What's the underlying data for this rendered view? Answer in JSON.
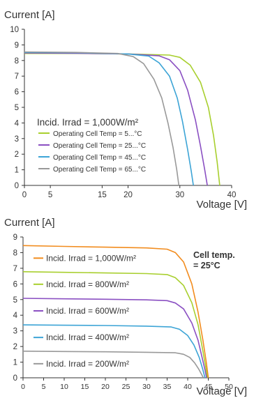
{
  "chart_data": [
    {
      "type": "line",
      "ylabel": "Current [A]",
      "xlabel": "Voltage [V]",
      "xlim": [
        0,
        40
      ],
      "ylim": [
        0,
        10
      ],
      "x_ticks": [
        0,
        5,
        15,
        20,
        30,
        40
      ],
      "y_ticks": [
        0,
        1,
        2,
        3,
        4,
        5,
        6,
        7,
        8,
        9,
        10
      ],
      "grid": false,
      "legend_title": "Incid. Irrad = 1,000W/m²",
      "legend_position": "lower-left",
      "series": [
        {
          "name": "Operating Cell Temp = 5...°C",
          "color": "#a8cf2e",
          "points": [
            [
              0,
              8.45
            ],
            [
              10,
              8.45
            ],
            [
              20,
              8.42
            ],
            [
              28,
              8.35
            ],
            [
              30,
              8.2
            ],
            [
              32,
              7.7
            ],
            [
              34,
              6.6
            ],
            [
              35.5,
              5.0
            ],
            [
              36.5,
              3.2
            ],
            [
              37.2,
              1.5
            ],
            [
              37.7,
              0
            ]
          ]
        },
        {
          "name": "Operating Cell Temp = 25...°C",
          "color": "#8a4fc2",
          "points": [
            [
              0,
              8.48
            ],
            [
              10,
              8.46
            ],
            [
              20,
              8.42
            ],
            [
              26,
              8.3
            ],
            [
              28,
              8.05
            ],
            [
              30,
              7.35
            ],
            [
              31.5,
              6.1
            ],
            [
              33,
              4.2
            ],
            [
              34,
              2.5
            ],
            [
              34.8,
              1.0
            ],
            [
              35.3,
              0
            ]
          ]
        },
        {
          "name": "Operating Cell Temp = 45...°C",
          "color": "#3ca4d6",
          "points": [
            [
              0,
              8.52
            ],
            [
              10,
              8.5
            ],
            [
              20,
              8.42
            ],
            [
              24,
              8.28
            ],
            [
              26,
              7.85
            ],
            [
              28,
              7.0
            ],
            [
              29.5,
              5.6
            ],
            [
              30.5,
              4.1
            ],
            [
              31.5,
              2.3
            ],
            [
              32.2,
              0.9
            ],
            [
              32.6,
              0
            ]
          ]
        },
        {
          "name": "Operating Cell Temp = 65...°C",
          "color": "#999999",
          "points": [
            [
              0,
              8.55
            ],
            [
              10,
              8.52
            ],
            [
              18,
              8.45
            ],
            [
              21,
              8.25
            ],
            [
              23,
              7.8
            ],
            [
              25,
              6.8
            ],
            [
              26.5,
              5.6
            ],
            [
              27.7,
              4.0
            ],
            [
              28.7,
              2.4
            ],
            [
              29.4,
              1.0
            ],
            [
              29.8,
              0
            ]
          ]
        }
      ]
    },
    {
      "type": "line",
      "ylabel": "Current [A]",
      "xlabel": "Voltage [V]",
      "xlim": [
        0,
        50
      ],
      "ylim": [
        0,
        9
      ],
      "x_ticks": [
        0,
        5,
        10,
        15,
        20,
        25,
        30,
        35,
        40,
        45,
        50
      ],
      "y_ticks": [
        0,
        1,
        2,
        3,
        4,
        5,
        6,
        7,
        8,
        9
      ],
      "grid": false,
      "annotation": "Cell temp.\n= 25°C",
      "series": [
        {
          "name": "Incid. Irrad = 1,000W/m²",
          "color": "#f28c1e",
          "points": [
            [
              0,
              8.45
            ],
            [
              10,
              8.4
            ],
            [
              20,
              8.35
            ],
            [
              30,
              8.3
            ],
            [
              35,
              8.22
            ],
            [
              37,
              8.0
            ],
            [
              39,
              7.4
            ],
            [
              41,
              6.0
            ],
            [
              42.5,
              4.2
            ],
            [
              43.7,
              2.4
            ],
            [
              44.5,
              1.0
            ],
            [
              45,
              0
            ]
          ]
        },
        {
          "name": "Incid. Irrad = 800W/m²",
          "color": "#a8cf2e",
          "points": [
            [
              0,
              6.78
            ],
            [
              10,
              6.74
            ],
            [
              20,
              6.7
            ],
            [
              30,
              6.66
            ],
            [
              35,
              6.6
            ],
            [
              37,
              6.4
            ],
            [
              39,
              5.9
            ],
            [
              41,
              4.8
            ],
            [
              42.5,
              3.4
            ],
            [
              43.5,
              2.0
            ],
            [
              44.3,
              0.8
            ],
            [
              44.8,
              0
            ]
          ]
        },
        {
          "name": "Incid. Irrad = 600W/m²",
          "color": "#8a4fc2",
          "points": [
            [
              0,
              5.08
            ],
            [
              10,
              5.05
            ],
            [
              20,
              5.02
            ],
            [
              30,
              4.98
            ],
            [
              35,
              4.93
            ],
            [
              37,
              4.78
            ],
            [
              39,
              4.4
            ],
            [
              41,
              3.5
            ],
            [
              42.5,
              2.4
            ],
            [
              43.5,
              1.3
            ],
            [
              44.2,
              0.5
            ],
            [
              44.6,
              0
            ]
          ]
        },
        {
          "name": "Incid. Irrad = 400W/m²",
          "color": "#3ca4d6",
          "points": [
            [
              0,
              3.38
            ],
            [
              10,
              3.36
            ],
            [
              20,
              3.34
            ],
            [
              30,
              3.3
            ],
            [
              36,
              3.25
            ],
            [
              38,
              3.1
            ],
            [
              40,
              2.7
            ],
            [
              41.5,
              2.1
            ],
            [
              42.8,
              1.3
            ],
            [
              43.6,
              0.6
            ],
            [
              44.2,
              0
            ]
          ]
        },
        {
          "name": "Incid. Irrad = 200W/m²",
          "color": "#999999",
          "points": [
            [
              0,
              1.7
            ],
            [
              10,
              1.68
            ],
            [
              20,
              1.66
            ],
            [
              30,
              1.63
            ],
            [
              37,
              1.6
            ],
            [
              39,
              1.5
            ],
            [
              40.5,
              1.3
            ],
            [
              41.7,
              0.95
            ],
            [
              42.7,
              0.55
            ],
            [
              43.4,
              0.2
            ],
            [
              43.8,
              0
            ]
          ]
        }
      ]
    }
  ]
}
